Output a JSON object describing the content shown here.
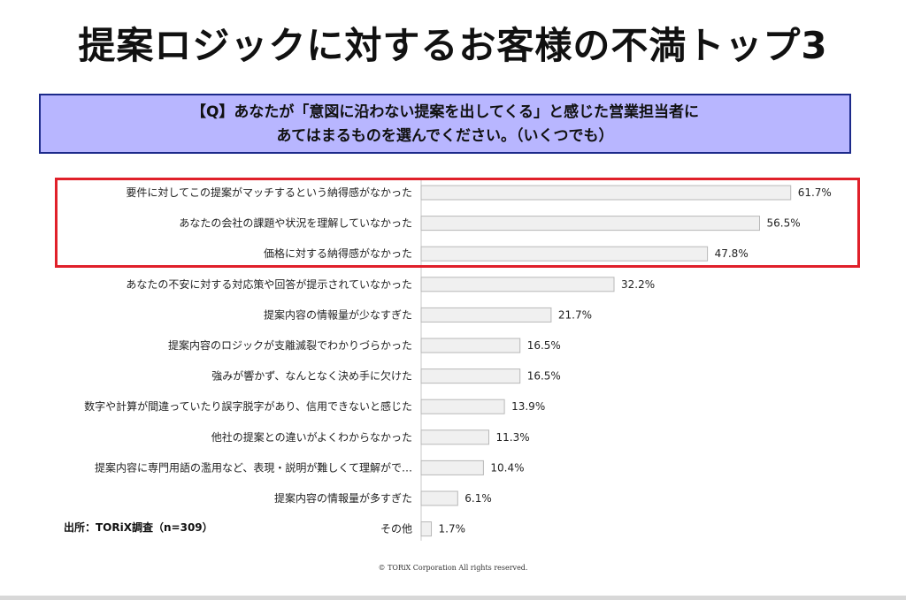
{
  "title": "提案ロジックに対するお客様の不満トップ3",
  "question": {
    "line1": "【Q】あなたが「意図に沿わない提案を出してくる」と感じた営業担当者に",
    "line2": "あてはまるものを選んでください。（いくつでも）"
  },
  "source": "出所：TORiX調査（n=309）",
  "copyright": "© TORiX Corporation All rights reserved.",
  "colors": {
    "bar_fill": "#f0f0f0",
    "bar_stroke": "#b8b8b8",
    "highlight_border": "#e0202a",
    "question_bg": "#b8b6ff"
  },
  "chart_data": {
    "type": "bar",
    "orientation": "horizontal",
    "xlim": [
      0,
      70
    ],
    "highlighted_categories": [
      0,
      1,
      2
    ],
    "categories": [
      "要件に対してこの提案がマッチするという納得感がなかった",
      "あなたの会社の課題や状況を理解していなかった",
      "価格に対する納得感がなかった",
      "あなたの不安に対する対応策や回答が提示されていなかった",
      "提案内容の情報量が少なすぎた",
      "提案内容のロジックが支離滅裂でわかりづらかった",
      "強みが響かず、なんとなく決め手に欠けた",
      "数字や計算が間違っていたり誤字脱字があり、信用できないと感じた",
      "他社の提案との違いがよくわからなかった",
      "提案内容に専門用語の濫用など、表現・説明が難しくて理解がで…",
      "提案内容の情報量が多すぎた",
      "その他"
    ],
    "values": [
      61.7,
      56.5,
      47.8,
      32.2,
      21.7,
      16.5,
      16.5,
      13.9,
      11.3,
      10.4,
      6.1,
      1.7
    ],
    "value_labels": [
      "61.7%",
      "56.5%",
      "47.8%",
      "32.2%",
      "21.7%",
      "16.5%",
      "16.5%",
      "13.9%",
      "11.3%",
      "10.4%",
      "6.1%",
      "1.7%"
    ]
  }
}
